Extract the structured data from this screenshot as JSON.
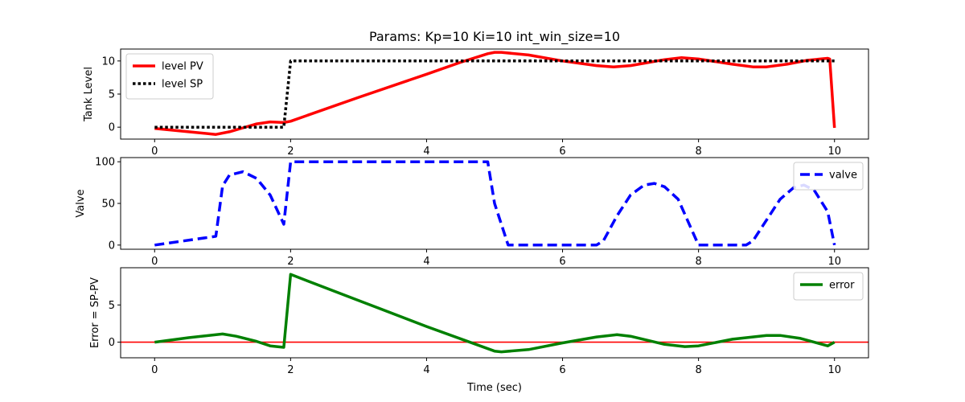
{
  "figure_title": "Params: Kp=10 Ki=10 int_win_size=10",
  "chart_data": [
    {
      "type": "line",
      "ylabel": "Tank Level",
      "xlabel": "",
      "xlim": [
        -0.5,
        10.5
      ],
      "ylim": [
        -1.8,
        11.8
      ],
      "xticks": [
        0,
        2,
        4,
        6,
        8,
        10
      ],
      "yticks": [
        0,
        5,
        10
      ],
      "legend": "top-left",
      "grid": false,
      "series": [
        {
          "name": "level PV",
          "color": "#ff0000",
          "style": "solid",
          "x": [
            0,
            0.5,
            0.9,
            1.1,
            1.3,
            1.5,
            1.7,
            1.9,
            2.0,
            3.0,
            4.0,
            4.5,
            4.9,
            5.0,
            5.1,
            5.5,
            6.0,
            6.5,
            6.75,
            7.0,
            7.5,
            7.75,
            8.0,
            8.5,
            8.8,
            9.0,
            9.3,
            9.6,
            9.9,
            9.93,
            10.0
          ],
          "y": [
            -0.2,
            -0.7,
            -1.1,
            -0.7,
            -0.1,
            0.5,
            0.8,
            0.7,
            0.9,
            4.5,
            8.0,
            9.8,
            11.1,
            11.3,
            11.3,
            10.9,
            10.0,
            9.3,
            9.1,
            9.3,
            10.2,
            10.5,
            10.3,
            9.5,
            9.1,
            9.1,
            9.5,
            10.1,
            10.4,
            10.3,
            -0.1
          ]
        },
        {
          "name": "level SP",
          "color": "#000000",
          "style": "dotted",
          "x": [
            0,
            1.9,
            2.0,
            10.0
          ],
          "y": [
            0,
            0,
            10,
            10
          ]
        }
      ]
    },
    {
      "type": "line",
      "ylabel": "Valve",
      "xlabel": "",
      "xlim": [
        -0.5,
        10.5
      ],
      "ylim": [
        -5,
        105
      ],
      "xticks": [
        0,
        2,
        4,
        6,
        8,
        10
      ],
      "yticks": [
        0,
        50,
        100
      ],
      "legend": "top-right",
      "grid": false,
      "series": [
        {
          "name": "valve",
          "color": "#0000ff",
          "style": "dashed",
          "x": [
            0,
            0.9,
            1.0,
            1.1,
            1.3,
            1.5,
            1.7,
            1.9,
            2.0,
            4.9,
            5.0,
            5.2,
            6.0,
            6.5,
            6.6,
            6.8,
            7.0,
            7.2,
            7.35,
            7.5,
            7.7,
            8.0,
            8.7,
            8.8,
            9.0,
            9.2,
            9.4,
            9.55,
            9.7,
            9.9,
            10.0
          ],
          "y": [
            0,
            10.5,
            71,
            84,
            88,
            80,
            60,
            25,
            100,
            100,
            50,
            0,
            0,
            0,
            5,
            35,
            60,
            72,
            74,
            70,
            55,
            0,
            0,
            5,
            30,
            55,
            69,
            72,
            66,
            40,
            0
          ]
        }
      ]
    },
    {
      "type": "line",
      "ylabel": "Error = SP-PV",
      "xlabel": "Time (sec)",
      "xlim": [
        -0.5,
        10.5
      ],
      "ylim": [
        -2.1,
        10.0
      ],
      "xticks": [
        0,
        2,
        4,
        6,
        8,
        10
      ],
      "yticks": [
        0,
        5
      ],
      "legend": "top-right",
      "grid": false,
      "hline": {
        "y": 0,
        "color": "#ff0000"
      },
      "series": [
        {
          "name": "error",
          "color": "#008000",
          "style": "solid",
          "x": [
            0,
            0.5,
            1.0,
            1.2,
            1.5,
            1.7,
            1.9,
            2.0,
            3.0,
            4.0,
            5.0,
            5.1,
            5.5,
            6.0,
            6.5,
            6.8,
            7.0,
            7.5,
            7.8,
            8.0,
            8.5,
            9.0,
            9.2,
            9.5,
            9.9,
            10.0
          ],
          "y": [
            0,
            0.6,
            1.1,
            0.8,
            0.1,
            -0.5,
            -0.7,
            9.1,
            5.6,
            2.1,
            -1.2,
            -1.3,
            -1.0,
            -0.1,
            0.7,
            1.0,
            0.8,
            -0.3,
            -0.6,
            -0.5,
            0.4,
            0.9,
            0.9,
            0.5,
            -0.5,
            0.0
          ]
        }
      ]
    }
  ]
}
